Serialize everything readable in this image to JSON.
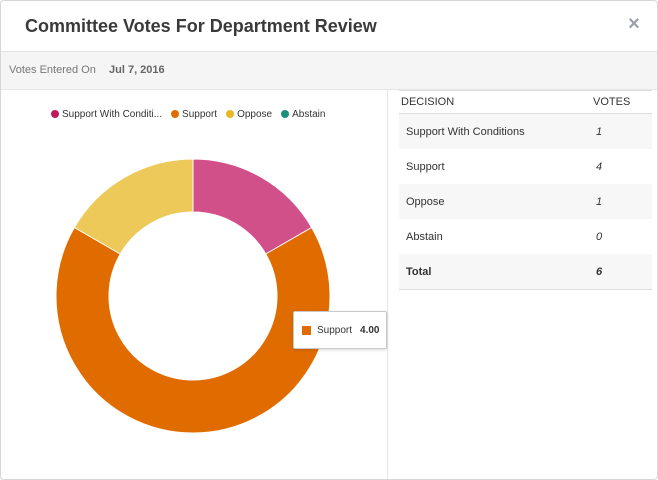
{
  "modal": {
    "title": "Committee Votes For Department Review",
    "close_icon": "×"
  },
  "info": {
    "label": "Votes Entered On",
    "date": "Jul 7, 2016"
  },
  "legend": [
    {
      "label": "Support With Conditi...",
      "color": "#c2185b"
    },
    {
      "label": "Support",
      "color": "#e06c00"
    },
    {
      "label": "Oppose",
      "color": "#e8b825"
    },
    {
      "label": "Abstain",
      "color": "#1a8f7a"
    }
  ],
  "chart_data": {
    "type": "pie",
    "categories": [
      "Support With Conditions",
      "Support",
      "Oppose",
      "Abstain"
    ],
    "values": [
      1,
      4,
      1,
      0
    ],
    "colors": [
      "#d1508a",
      "#e06c00",
      "#edc95a",
      "#1a8f7a"
    ]
  },
  "tooltip": {
    "label": "Support",
    "value": "4.00",
    "color": "#e06c00"
  },
  "table": {
    "headers": {
      "decision": "DECISION",
      "votes": "VOTES"
    },
    "rows": [
      {
        "decision": "Support With Conditions",
        "votes": "1"
      },
      {
        "decision": "Support",
        "votes": "4"
      },
      {
        "decision": "Oppose",
        "votes": "1"
      },
      {
        "decision": "Abstain",
        "votes": "0"
      }
    ],
    "total": {
      "decision": "Total",
      "votes": "6"
    }
  }
}
